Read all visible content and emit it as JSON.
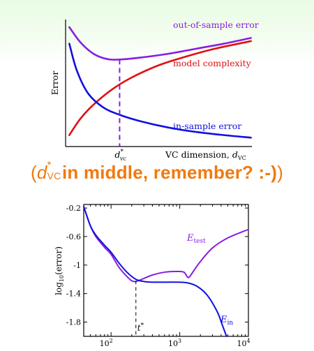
{
  "caption": {
    "open_paren": "(",
    "close_paren": ")",
    "symbol": "d",
    "sup": "*",
    "sub": "VC",
    "text": " in middle, remember? :-)"
  },
  "chart_data": [
    {
      "type": "line",
      "ylabel": "Error",
      "xlabel": "VC dimension, d_VC",
      "xlabel_main": "VC dimension, ",
      "xlabel_sym": "d",
      "xlabel_sub": "VC",
      "tick_marker": {
        "sym": "d",
        "sup": "*",
        "sub": "vc"
      },
      "optimum_marker_x": 0.29,
      "xlim": [
        0,
        1
      ],
      "ylim": [
        0,
        1
      ],
      "grid": false,
      "series": [
        {
          "name": "out-of-sample error",
          "color": "#8a1de0",
          "x": [
            0.02,
            0.08,
            0.15,
            0.22,
            0.29,
            0.4,
            0.55,
            0.7,
            0.85,
            0.995
          ],
          "y": [
            0.94,
            0.82,
            0.73,
            0.69,
            0.685,
            0.7,
            0.73,
            0.77,
            0.81,
            0.855
          ]
        },
        {
          "name": "model complexity",
          "color": "#e01010",
          "x": [
            0.02,
            0.08,
            0.15,
            0.25,
            0.35,
            0.5,
            0.65,
            0.8,
            0.995
          ],
          "y": [
            0.09,
            0.22,
            0.33,
            0.45,
            0.54,
            0.64,
            0.71,
            0.77,
            0.83
          ]
        },
        {
          "name": "in-sample error",
          "color": "#1010e0",
          "x": [
            0.02,
            0.06,
            0.12,
            0.2,
            0.29,
            0.4,
            0.55,
            0.7,
            0.85,
            0.995
          ],
          "y": [
            0.81,
            0.6,
            0.42,
            0.31,
            0.25,
            0.2,
            0.15,
            0.115,
            0.09,
            0.07
          ]
        }
      ]
    },
    {
      "type": "line",
      "ylabel": "log10(error)",
      "ylabel_pre": "log",
      "ylabel_sub": "10",
      "ylabel_post": "(error)",
      "x_scale": "log",
      "xlim": [
        40,
        10000
      ],
      "ylim": [
        -2.0,
        -0.15
      ],
      "xticks": [
        100,
        1000,
        10000
      ],
      "xtick_labels": [
        {
          "base": "10",
          "exp": "2"
        },
        {
          "base": "10",
          "exp": "3"
        },
        {
          "base": "10",
          "exp": "4"
        }
      ],
      "yticks": [
        -0.2,
        -0.6,
        -1,
        -1.4,
        -1.8
      ],
      "ytick_labels": [
        "-0.2",
        "-0.6",
        "-1",
        "-1.4",
        "-1.8"
      ],
      "marker_x": 230,
      "marker_label": {
        "sym": "t",
        "sup": "*"
      },
      "series": [
        {
          "name": "E_test",
          "label_sym": "E",
          "label_sub": "test",
          "color": "#8a1de0",
          "x": [
            40,
            50,
            60,
            80,
            100,
            130,
            170,
            200,
            230,
            280,
            400,
            600,
            900,
            1150,
            1300,
            1400,
            1600,
            2000,
            3000,
            5000,
            10000
          ],
          "y": [
            -0.18,
            -0.45,
            -0.6,
            -0.75,
            -0.85,
            -1.03,
            -1.16,
            -1.22,
            -1.23,
            -1.2,
            -1.14,
            -1.1,
            -1.09,
            -1.1,
            -1.17,
            -1.16,
            -1.08,
            -0.95,
            -0.76,
            -0.62,
            -0.5
          ]
        },
        {
          "name": "E_in",
          "label_sym": "E",
          "label_sub": "in",
          "color": "#1010e0",
          "x": [
            40,
            50,
            60,
            80,
            100,
            130,
            170,
            230,
            300,
            400,
            600,
            900,
            1300,
            1800,
            2500,
            3500,
            4200,
            4800
          ],
          "y": [
            -0.18,
            -0.45,
            -0.58,
            -0.72,
            -0.82,
            -0.97,
            -1.1,
            -1.2,
            -1.23,
            -1.24,
            -1.24,
            -1.24,
            -1.25,
            -1.3,
            -1.42,
            -1.65,
            -1.85,
            -2.0
          ]
        }
      ]
    }
  ]
}
